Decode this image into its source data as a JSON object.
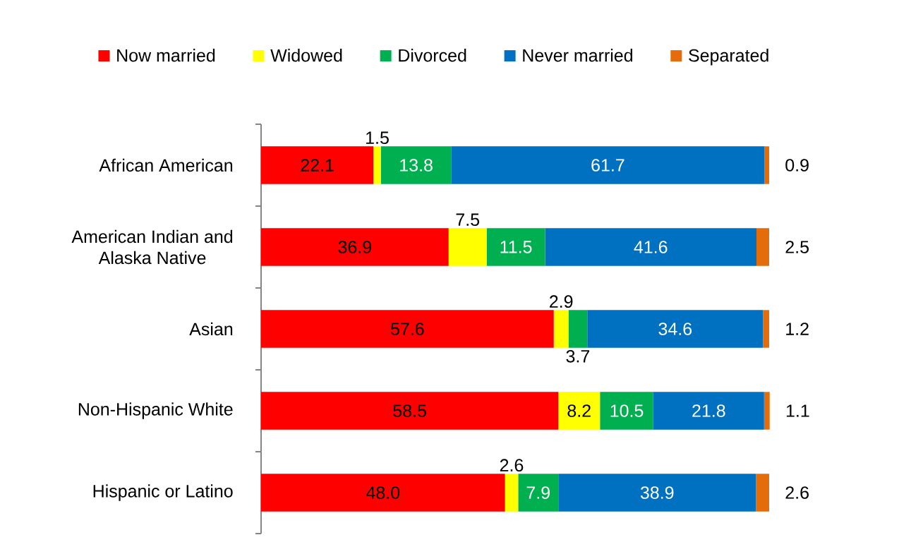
{
  "chart_data": {
    "type": "bar",
    "orientation": "horizontal",
    "stacked": true,
    "categories": [
      "African American",
      "American Indian and Alaska Native",
      "Asian",
      "Non-Hispanic White",
      "Hispanic or Latino"
    ],
    "series": [
      {
        "name": "Now married",
        "color": "#ff0000",
        "values": [
          22.1,
          36.9,
          57.6,
          58.5,
          48.0
        ],
        "value_labels": [
          "22.1",
          "36.9",
          "57.6",
          "58.5",
          "48.0"
        ]
      },
      {
        "name": "Widowed",
        "color": "#ffff00",
        "values": [
          1.5,
          7.5,
          2.9,
          8.2,
          2.6
        ],
        "value_labels": [
          "1.5",
          "7.5",
          "2.9",
          "8.2",
          "2.6"
        ]
      },
      {
        "name": "Divorced",
        "color": "#00b050",
        "values": [
          13.8,
          11.5,
          3.7,
          10.5,
          7.9
        ],
        "value_labels": [
          "13.8",
          "11.5",
          "3.7",
          "10.5",
          "7.9"
        ]
      },
      {
        "name": "Never married",
        "color": "#0070c0",
        "values": [
          61.7,
          41.6,
          34.6,
          21.8,
          38.9
        ],
        "value_labels": [
          "61.7",
          "41.6",
          "34.6",
          "21.8",
          "38.9"
        ]
      },
      {
        "name": "Separated",
        "color": "#e46c0a",
        "values": [
          0.9,
          2.5,
          1.2,
          1.1,
          2.6
        ],
        "value_labels": [
          "0.9",
          "2.5",
          "1.2",
          "1.1",
          "2.6"
        ]
      }
    ],
    "xlim": [
      0,
      100
    ],
    "tick_labels": "y",
    "legend": "top"
  }
}
